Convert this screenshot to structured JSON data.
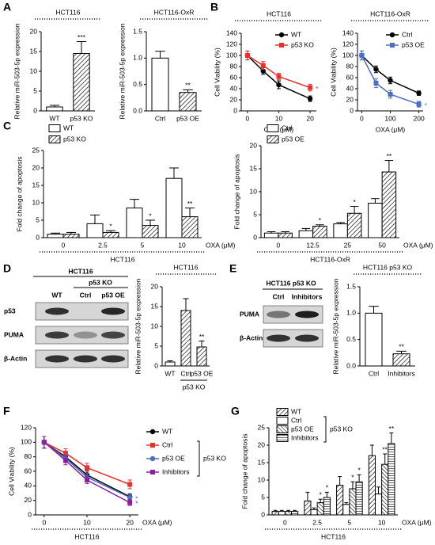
{
  "chart_data": [
    {
      "type": "bar",
      "panel": "A",
      "title": "HCT116",
      "ylabel": "Relative miR-503-5p expression",
      "categories": [
        "WT",
        "p53 KO"
      ],
      "series": [
        {
          "color": "#000000",
          "fill": [
            "white",
            "hatch"
          ],
          "values": [
            1,
            14.5
          ],
          "errors": [
            0.4,
            3
          ],
          "annotations": [
            null,
            "***"
          ]
        }
      ],
      "ylim": [
        0,
        20
      ],
      "yticks": [
        0,
        5,
        10,
        15,
        20
      ]
    },
    {
      "type": "bar",
      "title": "HCT116-OxR",
      "ylabel": "Relative miR-503-5p expression",
      "categories": [
        "Ctrl",
        "p53 OE"
      ],
      "series": [
        {
          "color": "#000000",
          "fill": [
            "white",
            "hatch"
          ],
          "values": [
            1.0,
            0.35
          ],
          "errors": [
            0.13,
            0.05
          ],
          "annotations": [
            null,
            "**"
          ]
        }
      ],
      "ylim": [
        0,
        1.5
      ],
      "yticks": [
        {
          "value": 0,
          "label": "0.0"
        },
        0.5,
        {
          "value": 1,
          "label": "1.0"
        },
        1.5
      ]
    },
    {
      "type": "line",
      "panel": "B",
      "title": "HCT116",
      "ylabel": "Cell Viability (%)",
      "xlabel": "OXA (μM)",
      "x": [
        0,
        5,
        10,
        20
      ],
      "xlim": [
        -2,
        22
      ],
      "xticks": [
        0,
        10,
        20
      ],
      "series": [
        {
          "name": "WT",
          "color": "#000000",
          "marker": "circle",
          "values": [
            100,
            72,
            47,
            22
          ],
          "errors": [
            8,
            6,
            7,
            5
          ]
        },
        {
          "name": "p53 KO",
          "color": "#e8312a",
          "marker": "square",
          "values": [
            100,
            82,
            62,
            42
          ],
          "errors": [
            8,
            7,
            6,
            6
          ],
          "annotation": "*"
        }
      ],
      "ylim": [
        0,
        140
      ],
      "yticks": [
        0,
        20,
        40,
        60,
        80,
        100,
        120,
        140
      ]
    },
    {
      "type": "line",
      "title": "HCT116-OxR",
      "ylabel": "Cell Viability (%)",
      "xlabel": "OXA (μM)",
      "x": [
        0,
        50,
        100,
        200
      ],
      "xlim": [
        -15,
        215
      ],
      "xticks": [
        0,
        100,
        200
      ],
      "series": [
        {
          "name": "Ctrl",
          "color": "#000000",
          "marker": "circle",
          "values": [
            100,
            75,
            55,
            32
          ],
          "errors": [
            8,
            6,
            6,
            4
          ]
        },
        {
          "name": "p53 OE",
          "color": "#4a6fc4",
          "marker": "square",
          "values": [
            100,
            50,
            30,
            12
          ],
          "errors": [
            8,
            8,
            7,
            5
          ],
          "annotation": "*"
        }
      ],
      "ylim": [
        0,
        140
      ],
      "yticks": [
        0,
        20,
        40,
        60,
        80,
        100,
        120,
        140
      ]
    },
    {
      "type": "bar",
      "panel": "C",
      "ylabel": "Fold change of apoptosis",
      "xlabel": "OXA (μM)",
      "group_label": "HCT116",
      "categories": [
        "0",
        "2.5",
        "5",
        "10"
      ],
      "series": [
        {
          "name": "WT",
          "color": "#000000",
          "fill": "white",
          "values": [
            1,
            4,
            8.5,
            17
          ],
          "errors": [
            0.3,
            2.5,
            2.5,
            3
          ]
        },
        {
          "name": "p53 KO",
          "color": "#000000",
          "fill": "hatch",
          "values": [
            1,
            1.5,
            3.5,
            6
          ],
          "errors": [
            0.5,
            0.5,
            1.5,
            2.5
          ],
          "annotations": [
            null,
            "*",
            "*",
            "**"
          ]
        }
      ],
      "ylim": [
        0,
        25
      ],
      "yticks": [
        0,
        5,
        10,
        15,
        20,
        25
      ]
    },
    {
      "type": "bar",
      "ylabel": "Fold change of apoptosis",
      "xlabel": "OXA (μM)",
      "group_label": "HCT116-OxR",
      "categories": [
        "0",
        "12.5",
        "25",
        "50"
      ],
      "series": [
        {
          "name": "Ctrl",
          "color": "#000000",
          "fill": "white",
          "values": [
            1,
            1.5,
            3,
            7.5
          ],
          "errors": [
            0.3,
            0.5,
            0.3,
            1
          ]
        },
        {
          "name": "p53 OE",
          "color": "#000000",
          "fill": "hatch",
          "values": [
            1,
            2.5,
            5.3,
            14.3
          ],
          "errors": [
            0.3,
            0.3,
            1.5,
            2.5
          ],
          "annotations": [
            null,
            "*",
            "*",
            "**"
          ]
        }
      ],
      "ylim": [
        0,
        20
      ],
      "yticks": [
        0,
        5,
        10,
        15,
        20
      ]
    },
    {
      "type": "bar",
      "title": "HCT116",
      "ylabel": "Relative miR-503-5p expression",
      "x_group_label": "p53 KO",
      "categories": [
        "WT",
        "Ctrl",
        "p53 OE"
      ],
      "series": [
        {
          "color": "#000000",
          "fill": [
            "white",
            "hatch",
            "hatch"
          ],
          "values": [
            1,
            14,
            4.8
          ],
          "errors": [
            0.3,
            3,
            1.5
          ],
          "annotations": [
            null,
            null,
            "**"
          ]
        }
      ],
      "ylim": [
        0,
        20
      ],
      "yticks": [
        0,
        5,
        10,
        15,
        20
      ]
    },
    {
      "type": "bar",
      "title": "HCT116 p53 KO",
      "ylabel": "Relative miR-503-5p expression",
      "categories": [
        "Ctrl",
        "Inhibitors"
      ],
      "series": [
        {
          "color": "#000000",
          "fill": [
            "white",
            "hatch"
          ],
          "values": [
            1.0,
            0.23
          ],
          "errors": [
            0.13,
            0.05
          ],
          "annotations": [
            null,
            "**"
          ]
        }
      ],
      "ylim": [
        0,
        1.5
      ],
      "yticks": [
        {
          "value": 0,
          "label": "0.0"
        },
        0.5,
        {
          "value": 1,
          "label": "1.0"
        },
        1.5
      ]
    },
    {
      "type": "line",
      "panel": "F",
      "ylabel": "Cell Viability  (%)",
      "xlabel": "OXA (μM)",
      "group_label": "HCT116",
      "legend_group_label": "p53 KO",
      "x": [
        0,
        5,
        10,
        20
      ],
      "xlim": [
        -2,
        22
      ],
      "xticks": [
        0,
        10,
        20
      ],
      "series": [
        {
          "name": "WT",
          "color": "#000000",
          "marker": "circle",
          "values": [
            100,
            80,
            55,
            25
          ],
          "errors": [
            8,
            6,
            6,
            4
          ]
        },
        {
          "name": "Ctrl",
          "color": "#e8312a",
          "marker": "square",
          "values": [
            100,
            85,
            65,
            42
          ],
          "errors": [
            8,
            6,
            6,
            6
          ]
        },
        {
          "name": "p53 OE",
          "color": "#4a6fc4",
          "marker": "circle",
          "values": [
            100,
            78,
            52,
            24
          ],
          "errors": [
            8,
            6,
            5,
            4
          ],
          "annotation": "*"
        },
        {
          "name": "Inhibitors",
          "color": "#8b1fa0",
          "marker": "square",
          "values": [
            100,
            75,
            48,
            17
          ],
          "errors": [
            8,
            6,
            5,
            4
          ],
          "annotation": "*"
        }
      ],
      "ylim": [
        0,
        120
      ],
      "yticks": [
        0,
        20,
        40,
        60,
        80,
        100,
        120
      ]
    },
    {
      "type": "bar",
      "panel": "G",
      "ylabel": "Fold change of apoptosis",
      "xlabel": "OXA (μM)",
      "group_label": "HCT116",
      "legend_group_label": "p53 KO",
      "categories": [
        "0",
        "2.5",
        "5",
        "10"
      ],
      "series": [
        {
          "name": "WT",
          "color": "#000000",
          "fill": "hatch",
          "values": [
            1,
            4,
            8.5,
            17
          ],
          "errors": [
            0.3,
            2.5,
            2.5,
            3
          ]
        },
        {
          "name": "Ctrl",
          "color": "#000000",
          "fill": "white",
          "values": [
            1,
            1.5,
            3,
            6
          ],
          "errors": [
            0.3,
            0.5,
            0.5,
            2
          ]
        },
        {
          "name": "p53 OE",
          "color": "#000000",
          "fill": "backhatch",
          "values": [
            1,
            3.5,
            7.5,
            14.5
          ],
          "errors": [
            0.3,
            1,
            2,
            3
          ],
          "annotations": [
            null,
            "*",
            "*",
            "**"
          ]
        },
        {
          "name": "Inhibitors",
          "color": "#000000",
          "fill": "horizontal",
          "values": [
            1,
            5,
            9.5,
            20.5
          ],
          "errors": [
            0.3,
            1.5,
            2,
            3
          ],
          "annotations": [
            null,
            "*",
            "*",
            "**"
          ]
        }
      ],
      "ylim": [
        0,
        25
      ],
      "yticks": [
        0,
        5,
        10,
        15,
        20,
        25
      ]
    }
  ],
  "blots": [
    {
      "panel": "D",
      "title": "HCT116",
      "group": "p53 KO",
      "columns": [
        "WT",
        "Ctrl",
        "p53 OE"
      ],
      "rows": [
        "p53",
        "PUMA",
        "β-Actin"
      ]
    },
    {
      "panel": "E",
      "title": "HCT116 p53 KO",
      "columns": [
        "Ctrl",
        "Inhibitors"
      ],
      "rows": [
        "PUMA",
        "β-Actin"
      ]
    }
  ]
}
